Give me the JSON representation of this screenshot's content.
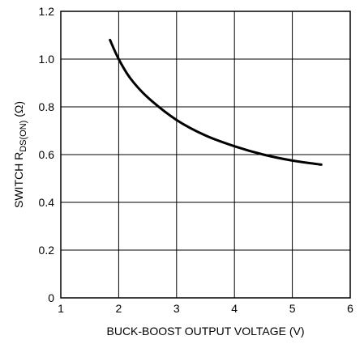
{
  "chart_data": {
    "type": "line",
    "title": "",
    "xlabel": "BUCK-BOOST OUTPUT VOLTAGE (V)",
    "ylabel": {
      "prefix": "SWITCH R",
      "subscript": "DS(ON)",
      "suffix": " (Ω)"
    },
    "xlim": [
      1,
      6
    ],
    "ylim": [
      0,
      1.2
    ],
    "x_ticks": [
      "1",
      "2",
      "3",
      "4",
      "5",
      "6"
    ],
    "y_ticks": [
      "0",
      "0.2",
      "0.4",
      "0.6",
      "0.8",
      "1.0",
      "1.2"
    ],
    "grid": true,
    "series": [
      {
        "x": [
          1.85,
          2.0,
          2.2,
          2.5,
          3.0,
          3.5,
          4.0,
          4.5,
          5.0,
          5.5
        ],
        "y": [
          1.08,
          1.0,
          0.92,
          0.84,
          0.745,
          0.68,
          0.635,
          0.6,
          0.575,
          0.558
        ]
      }
    ]
  }
}
